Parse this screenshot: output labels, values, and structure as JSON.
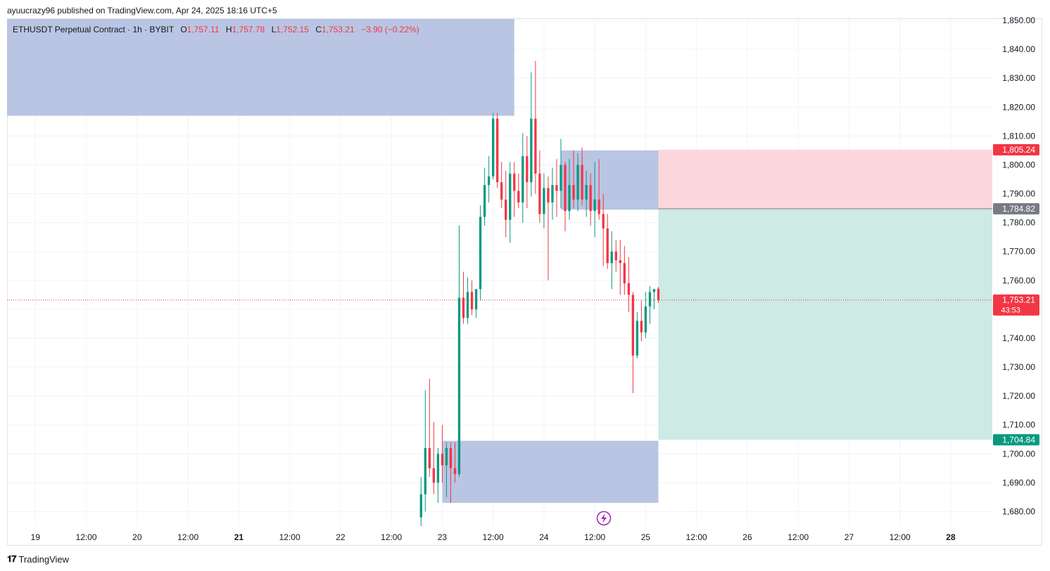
{
  "header": {
    "published_line": "ayuucrazy96 published on TradingView.com, Apr 24, 2025 18:16 UTC+5"
  },
  "legend": {
    "symbol_line": "ETHUSDT Perpetual Contract · 1h · BYBIT",
    "open_label": "O",
    "open_value": "1,757.11",
    "high_label": "H",
    "high_value": "1,757.78",
    "low_label": "L",
    "low_value": "1,752.15",
    "close_label": "C",
    "close_value": "1,753.21",
    "change": "−3.90 (−0.22%)"
  },
  "footer": {
    "brand": "TradingView"
  },
  "colors": {
    "up": "#089981",
    "down": "#f23645",
    "zone": "#b6c2e2",
    "stop_zone": "#fbd7db",
    "target_zone": "#cdeae4",
    "grid": "#f0f3fa"
  },
  "chart_data": {
    "type": "candlestick",
    "interval": "1h",
    "y_range": [
      1675,
      1850.5
    ],
    "y_ticks": [
      1680,
      1690,
      1700,
      1710,
      1720,
      1730,
      1740,
      1750,
      1760,
      1770,
      1780,
      1790,
      1800,
      1810,
      1820,
      1830,
      1840,
      1850
    ],
    "y_tick_labels": [
      "1,680.00",
      "1,690.00",
      "1,700.00",
      "1,710.00",
      "1,720.00",
      "1,730.00",
      "1,740.00",
      "1,750.00",
      "1,760.00",
      "1,770.00",
      "1,780.00",
      "1,790.00",
      "1,800.00",
      "1,810.00",
      "1,820.00",
      "1,830.00",
      "1,840.00",
      "1,850.00"
    ],
    "x_range_hours": [
      -6.7,
      225.8
    ],
    "x_ticks": [
      {
        "h": 0,
        "label": "19",
        "bold": false
      },
      {
        "h": 12,
        "label": "12:00",
        "bold": false
      },
      {
        "h": 24,
        "label": "20",
        "bold": false
      },
      {
        "h": 36,
        "label": "12:00",
        "bold": false
      },
      {
        "h": 48,
        "label": "21",
        "bold": true
      },
      {
        "h": 60,
        "label": "12:00",
        "bold": false
      },
      {
        "h": 72,
        "label": "22",
        "bold": false
      },
      {
        "h": 84,
        "label": "12:00",
        "bold": false
      },
      {
        "h": 96,
        "label": "23",
        "bold": false
      },
      {
        "h": 108,
        "label": "12:00",
        "bold": false
      },
      {
        "h": 120,
        "label": "24",
        "bold": false
      },
      {
        "h": 132,
        "label": "12:00",
        "bold": false
      },
      {
        "h": 144,
        "label": "25",
        "bold": false
      },
      {
        "h": 156,
        "label": "12:00",
        "bold": false
      },
      {
        "h": 168,
        "label": "26",
        "bold": false
      },
      {
        "h": 180,
        "label": "12:00",
        "bold": false
      },
      {
        "h": 192,
        "label": "27",
        "bold": false
      },
      {
        "h": 204,
        "label": "12:00",
        "bold": false
      },
      {
        "h": 216,
        "label": "28",
        "bold": true
      },
      {
        "h": 228,
        "label": "12:00",
        "bold": false
      }
    ],
    "candles_start_hour": 91,
    "candles": [
      {
        "o": 1678,
        "h": 1692,
        "l": 1675,
        "c": 1686
      },
      {
        "o": 1686,
        "h": 1722,
        "l": 1680,
        "c": 1702
      },
      {
        "o": 1702,
        "h": 1726,
        "l": 1692,
        "c": 1695
      },
      {
        "o": 1695,
        "h": 1711,
        "l": 1686,
        "c": 1690
      },
      {
        "o": 1690,
        "h": 1702,
        "l": 1683,
        "c": 1700
      },
      {
        "o": 1700,
        "h": 1710,
        "l": 1690,
        "c": 1696
      },
      {
        "o": 1696,
        "h": 1704,
        "l": 1685,
        "c": 1702
      },
      {
        "o": 1702,
        "h": 1704,
        "l": 1683,
        "c": 1695
      },
      {
        "o": 1695,
        "h": 1704,
        "l": 1690,
        "c": 1693
      },
      {
        "o": 1693,
        "h": 1779,
        "l": 1692,
        "c": 1754
      },
      {
        "o": 1754,
        "h": 1763,
        "l": 1745,
        "c": 1747
      },
      {
        "o": 1747,
        "h": 1761,
        "l": 1745,
        "c": 1756
      },
      {
        "o": 1756,
        "h": 1760,
        "l": 1748,
        "c": 1750
      },
      {
        "o": 1750,
        "h": 1757,
        "l": 1747,
        "c": 1757
      },
      {
        "o": 1757,
        "h": 1786,
        "l": 1753,
        "c": 1782
      },
      {
        "o": 1782,
        "h": 1799,
        "l": 1779,
        "c": 1793
      },
      {
        "o": 1793,
        "h": 1803,
        "l": 1787,
        "c": 1796
      },
      {
        "o": 1796,
        "h": 1818,
        "l": 1795,
        "c": 1816
      },
      {
        "o": 1816,
        "h": 1818,
        "l": 1792,
        "c": 1794
      },
      {
        "o": 1794,
        "h": 1801,
        "l": 1785,
        "c": 1788
      },
      {
        "o": 1788,
        "h": 1798,
        "l": 1775,
        "c": 1781
      },
      {
        "o": 1781,
        "h": 1801,
        "l": 1773,
        "c": 1797
      },
      {
        "o": 1797,
        "h": 1801,
        "l": 1782,
        "c": 1791
      },
      {
        "o": 1791,
        "h": 1797,
        "l": 1785,
        "c": 1787
      },
      {
        "o": 1787,
        "h": 1811,
        "l": 1780,
        "c": 1803
      },
      {
        "o": 1803,
        "h": 1810,
        "l": 1785,
        "c": 1794
      },
      {
        "o": 1794,
        "h": 1832,
        "l": 1789,
        "c": 1816
      },
      {
        "o": 1816,
        "h": 1836,
        "l": 1790,
        "c": 1797
      },
      {
        "o": 1797,
        "h": 1805,
        "l": 1780,
        "c": 1783
      },
      {
        "o": 1783,
        "h": 1797,
        "l": 1778,
        "c": 1792
      },
      {
        "o": 1792,
        "h": 1796,
        "l": 1760,
        "c": 1787
      },
      {
        "o": 1787,
        "h": 1799,
        "l": 1781,
        "c": 1793
      },
      {
        "o": 1793,
        "h": 1802,
        "l": 1782,
        "c": 1791
      },
      {
        "o": 1791,
        "h": 1809,
        "l": 1785,
        "c": 1800
      },
      {
        "o": 1800,
        "h": 1801,
        "l": 1777,
        "c": 1784
      },
      {
        "o": 1784,
        "h": 1802,
        "l": 1781,
        "c": 1793
      },
      {
        "o": 1793,
        "h": 1805,
        "l": 1785,
        "c": 1788
      },
      {
        "o": 1788,
        "h": 1804,
        "l": 1784,
        "c": 1800
      },
      {
        "o": 1800,
        "h": 1806,
        "l": 1786,
        "c": 1788
      },
      {
        "o": 1788,
        "h": 1798,
        "l": 1782,
        "c": 1793
      },
      {
        "o": 1793,
        "h": 1797,
        "l": 1779,
        "c": 1784
      },
      {
        "o": 1784,
        "h": 1801,
        "l": 1775,
        "c": 1788
      },
      {
        "o": 1788,
        "h": 1802,
        "l": 1781,
        "c": 1783
      },
      {
        "o": 1783,
        "h": 1790,
        "l": 1765,
        "c": 1778
      },
      {
        "o": 1778,
        "h": 1783,
        "l": 1764,
        "c": 1766
      },
      {
        "o": 1766,
        "h": 1777,
        "l": 1757,
        "c": 1770
      },
      {
        "o": 1770,
        "h": 1774,
        "l": 1763,
        "c": 1767
      },
      {
        "o": 1767,
        "h": 1774,
        "l": 1755,
        "c": 1766
      },
      {
        "o": 1766,
        "h": 1772,
        "l": 1755,
        "c": 1759
      },
      {
        "o": 1759,
        "h": 1768,
        "l": 1749,
        "c": 1755
      },
      {
        "o": 1755,
        "h": 1756,
        "l": 1721,
        "c": 1734
      },
      {
        "o": 1734,
        "h": 1749,
        "l": 1733,
        "c": 1746
      },
      {
        "o": 1746,
        "h": 1753,
        "l": 1739,
        "c": 1742
      },
      {
        "o": 1742,
        "h": 1756,
        "l": 1740,
        "c": 1751
      },
      {
        "o": 1751,
        "h": 1758,
        "l": 1745,
        "c": 1756
      },
      {
        "o": 1756,
        "h": 1757,
        "l": 1750,
        "c": 1757
      },
      {
        "o": 1757.11,
        "h": 1757.78,
        "l": 1752.15,
        "c": 1753.21
      }
    ],
    "zones": [
      {
        "name": "supply-zone-upper",
        "h0": -6.7,
        "h1": 113,
        "top": 1850.5,
        "bottom": 1817
      },
      {
        "name": "supply-zone-mid",
        "h0": 124,
        "h1": 147,
        "top": 1805,
        "bottom": 1784.5
      },
      {
        "name": "demand-zone-lower",
        "h0": 96,
        "h1": 147,
        "top": 1704.5,
        "bottom": 1683
      }
    ],
    "position": {
      "h0": 147,
      "h1": 225.8,
      "stop": 1805.24,
      "entry": 1784.82,
      "target": 1704.84,
      "stop_label": "1,805.24",
      "entry_label": "1,784.82",
      "target_label": "1,704.84"
    },
    "last_price": 1753.21,
    "last_price_label": "1,753.21",
    "countdown": "43:53"
  }
}
